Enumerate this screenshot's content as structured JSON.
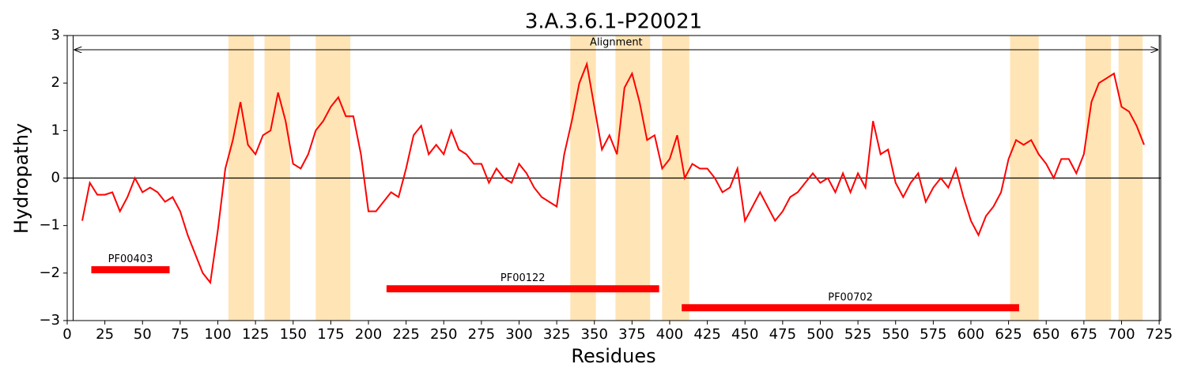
{
  "chart_data": {
    "type": "line",
    "title": "3.A.3.6.1-P20021",
    "x_label": "Residues",
    "y_label": "Hydropathy",
    "color": "#ff0000",
    "x": [
      10,
      15,
      20,
      25,
      30,
      35,
      40,
      45,
      50,
      55,
      60,
      65,
      70,
      75,
      80,
      85,
      90,
      95,
      100,
      105,
      110,
      115,
      120,
      125,
      130,
      135,
      140,
      145,
      150,
      155,
      160,
      165,
      170,
      175,
      180,
      185,
      190,
      195,
      200,
      205,
      210,
      215,
      220,
      225,
      230,
      235,
      240,
      245,
      250,
      255,
      260,
      265,
      270,
      275,
      280,
      285,
      290,
      295,
      300,
      305,
      310,
      315,
      320,
      325,
      330,
      335,
      340,
      345,
      350,
      355,
      360,
      365,
      370,
      375,
      380,
      385,
      390,
      395,
      400,
      405,
      410,
      415,
      420,
      425,
      430,
      435,
      440,
      445,
      450,
      455,
      460,
      465,
      470,
      475,
      480,
      485,
      490,
      495,
      500,
      505,
      510,
      515,
      520,
      525,
      530,
      535,
      540,
      545,
      550,
      555,
      560,
      565,
      570,
      575,
      580,
      585,
      590,
      595,
      600,
      605,
      610,
      615,
      620,
      625,
      630,
      635,
      640,
      645,
      650,
      655,
      660,
      665,
      670,
      675,
      680,
      685,
      690,
      695,
      700,
      705,
      710,
      715
    ],
    "values": [
      -0.9,
      -0.1,
      -0.35,
      -0.35,
      -0.3,
      -0.7,
      -0.4,
      0.0,
      -0.3,
      -0.2,
      -0.3,
      -0.5,
      -0.4,
      -0.7,
      -1.2,
      -1.6,
      -2.0,
      -2.2,
      -1.1,
      0.2,
      0.8,
      1.6,
      0.7,
      0.5,
      0.9,
      1.0,
      1.8,
      1.2,
      0.3,
      0.2,
      0.5,
      1.0,
      1.2,
      1.5,
      1.7,
      1.3,
      1.3,
      0.5,
      -0.7,
      -0.7,
      -0.5,
      -0.3,
      -0.4,
      0.2,
      0.9,
      1.1,
      0.5,
      0.7,
      0.5,
      1.0,
      0.6,
      0.5,
      0.3,
      0.3,
      -0.1,
      0.2,
      0.0,
      -0.1,
      0.3,
      0.1,
      -0.2,
      -0.4,
      -0.5,
      -0.6,
      0.5,
      1.2,
      2.0,
      2.4,
      1.5,
      0.6,
      0.9,
      0.5,
      1.9,
      2.2,
      1.6,
      0.8,
      0.9,
      0.2,
      0.4,
      0.9,
      0.0,
      0.3,
      0.2,
      0.2,
      0.0,
      -0.3,
      -0.2,
      0.2,
      -0.9,
      -0.6,
      -0.3,
      -0.6,
      -0.9,
      -0.7,
      -0.4,
      -0.3,
      -0.1,
      0.1,
      -0.1,
      0.0,
      -0.3,
      0.1,
      -0.3,
      0.1,
      -0.2,
      1.2,
      0.5,
      0.6,
      -0.1,
      -0.4,
      -0.1,
      0.1,
      -0.5,
      -0.2,
      0.0,
      -0.2,
      0.2,
      -0.4,
      -0.9,
      -1.2,
      -0.8,
      -0.6,
      -0.3,
      0.4,
      0.8,
      0.7,
      0.8,
      0.5,
      0.3,
      0.0,
      0.4,
      0.4,
      0.1,
      0.5,
      1.6,
      2.0,
      2.1,
      2.2,
      1.5,
      1.4,
      1.1,
      0.7
    ],
    "tms_color": "#ffe4b5",
    "tms": [
      [
        107,
        124
      ],
      [
        131,
        148
      ],
      [
        165,
        188
      ],
      [
        334,
        351
      ],
      [
        364,
        387
      ],
      [
        395,
        413
      ],
      [
        626,
        645
      ],
      [
        676,
        693
      ],
      [
        698,
        714
      ]
    ],
    "domains": [
      {
        "name": "PF00403",
        "start": 16,
        "end": 68,
        "y": -1.93
      },
      {
        "name": "PF00122",
        "start": 212,
        "end": 393,
        "y": -2.33
      },
      {
        "name": "PF00702",
        "start": 408,
        "end": 632,
        "y": -2.73
      }
    ],
    "alignment": {
      "label": "Alignment",
      "start": 5,
      "end": 724,
      "y": 2.7
    },
    "hlines": [
      0
    ],
    "xlim": [
      0,
      726
    ],
    "ylim": [
      -3,
      3
    ],
    "xticks": [
      0,
      25,
      50,
      75,
      100,
      125,
      150,
      175,
      200,
      225,
      250,
      275,
      300,
      325,
      350,
      375,
      400,
      425,
      450,
      475,
      500,
      525,
      550,
      575,
      600,
      625,
      650,
      675,
      700,
      725
    ],
    "yticks": [
      {
        "value": -3,
        "label": "−3"
      },
      {
        "value": -2,
        "label": "−2"
      },
      {
        "value": -1,
        "label": "−1"
      },
      0,
      1,
      2,
      3
    ]
  }
}
